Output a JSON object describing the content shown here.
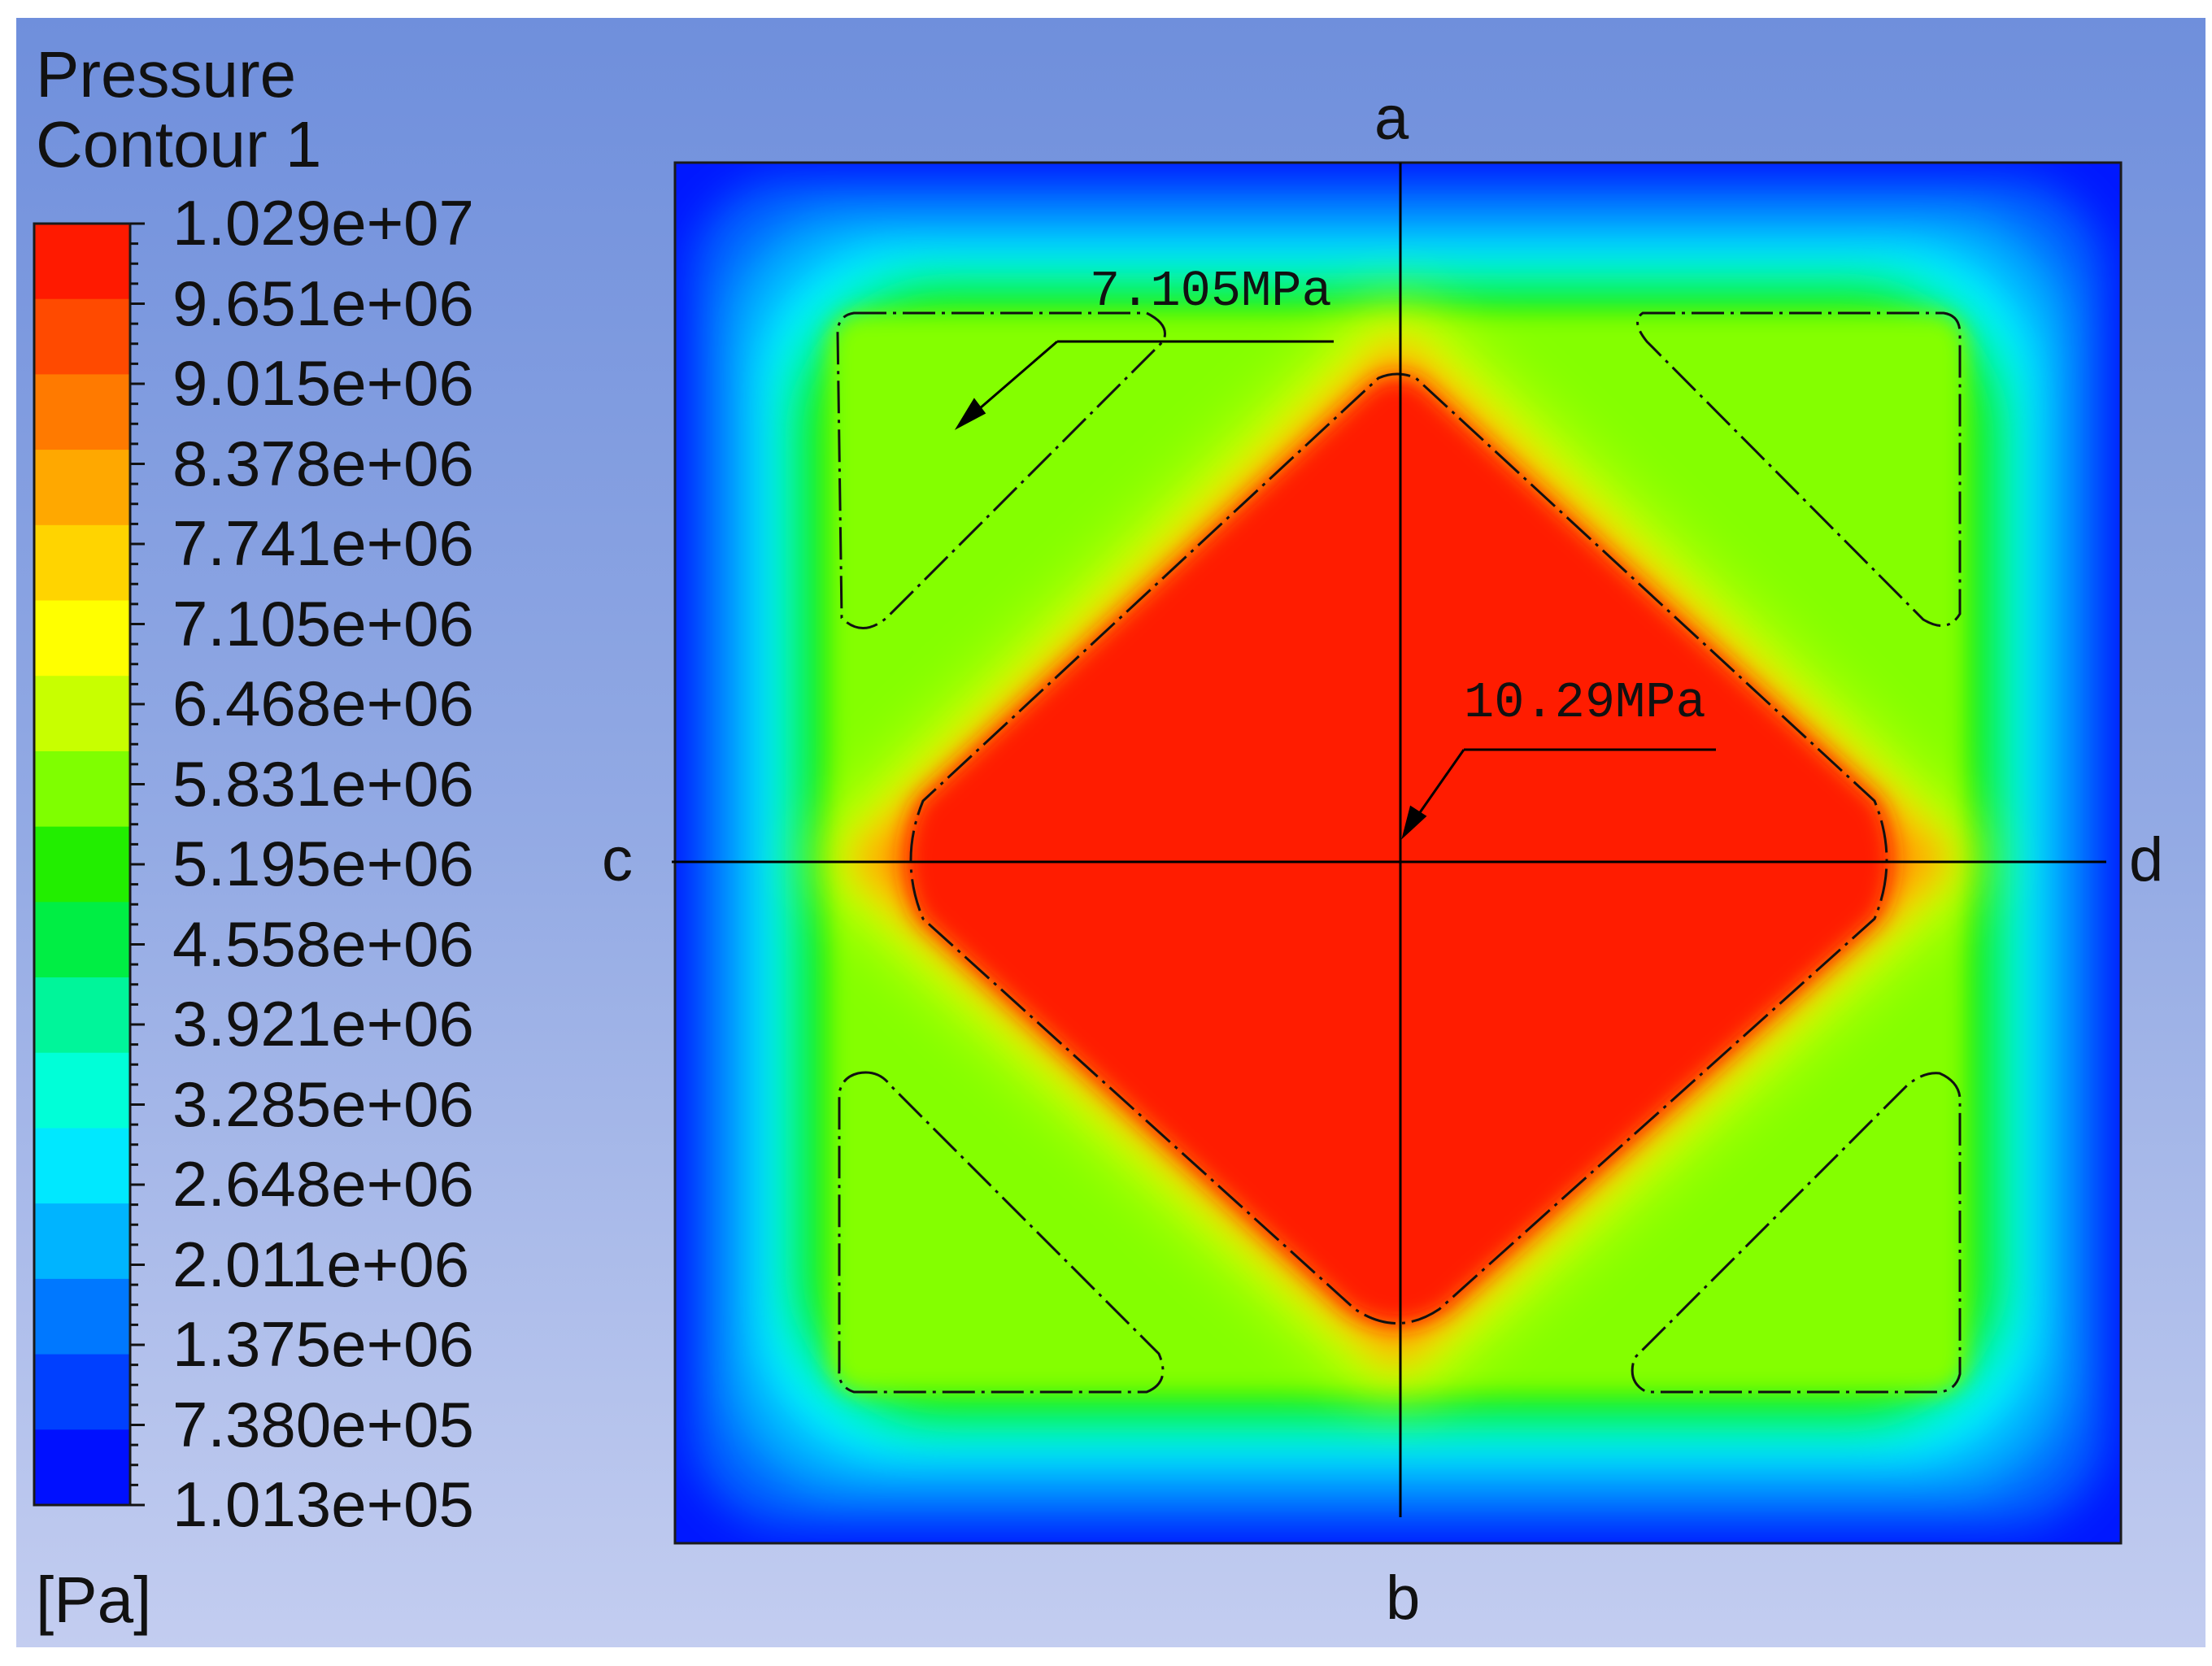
{
  "legend": {
    "title_line1": "Pressure",
    "title_line2": "Contour 1",
    "unit": "[Pa]",
    "ticks": [
      "1.029e+07",
      "9.651e+06",
      "9.015e+06",
      "8.378e+06",
      "7.741e+06",
      "7.105e+06",
      "6.468e+06",
      "5.831e+06",
      "5.195e+06",
      "4.558e+06",
      "3.921e+06",
      "3.285e+06",
      "2.648e+06",
      "2.011e+06",
      "1.375e+06",
      "7.380e+05",
      "1.013e+05"
    ],
    "colors": [
      "#ff1a00",
      "#ff4a00",
      "#ff7a00",
      "#ffa800",
      "#ffd400",
      "#ffff00",
      "#c8ff00",
      "#7fff00",
      "#22ee00",
      "#00ee44",
      "#00f59a",
      "#00ffd8",
      "#00e8ff",
      "#00b4ff",
      "#0078ff",
      "#0040ff",
      "#0010ff"
    ]
  },
  "plot": {
    "axis_labels": {
      "top": "a",
      "bottom": "b",
      "left": "c",
      "right": "d"
    },
    "annotations": [
      {
        "text": "7.105MPa"
      },
      {
        "text": "10.29MPa"
      }
    ]
  }
}
